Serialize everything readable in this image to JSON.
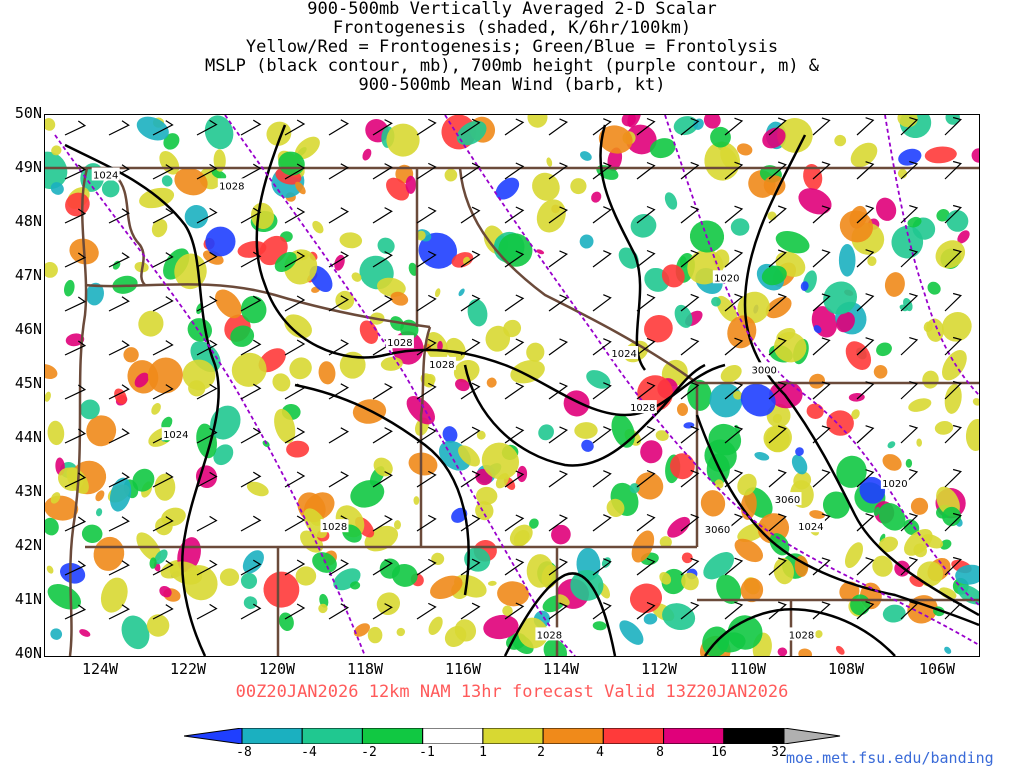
{
  "title_lines": [
    "900-500mb Vertically Averaged 2-D Scalar",
    "Frontogenesis (shaded, K/6hr/100km)",
    "Yellow/Red = Frontogenesis;  Green/Blue = Frontolysis",
    "MSLP (black contour, mb), 700mb height (purple contour, m) &",
    "900-500mb Mean Wind (barb, kt)"
  ],
  "lat_labels": [
    "50N",
    "49N",
    "48N",
    "47N",
    "46N",
    "45N",
    "44N",
    "43N",
    "42N",
    "41N",
    "40N"
  ],
  "lon_labels": [
    "124W",
    "122W",
    "120W",
    "118W",
    "116W",
    "114W",
    "112W",
    "110W",
    "108W",
    "106W"
  ],
  "valid_text": "00Z20JAN2026 12km NAM 13hr forecast Valid 13Z20JAN2026",
  "colorbar": {
    "labels": [
      "-8",
      "-4",
      "-2",
      "-1",
      "1",
      "2",
      "4",
      "8",
      "16",
      "32"
    ],
    "colors": [
      "#1f3fff",
      "#1bb0c0",
      "#20c890",
      "#11c842",
      "#ffffff",
      "#d8d832",
      "#f08a1a",
      "#ff3a3a",
      "#e0007a",
      "#000000",
      "#b0b0b0"
    ]
  },
  "contour_labels": {
    "mslp": [
      {
        "text": "1024",
        "pos": [
          -123.7,
          48.9
        ]
      },
      {
        "text": "1028",
        "pos": [
          -121.0,
          48.7
        ]
      },
      {
        "text": "1028",
        "pos": [
          -117.4,
          45.8
        ]
      },
      {
        "text": "1028",
        "pos": [
          -116.5,
          45.4
        ]
      },
      {
        "text": "1024",
        "pos": [
          -122.2,
          44.1
        ]
      },
      {
        "text": "1028",
        "pos": [
          -118.8,
          42.4
        ]
      },
      {
        "text": "1020",
        "pos": [
          -110.4,
          47.0
        ]
      },
      {
        "text": "1024",
        "pos": [
          -112.6,
          45.6
        ]
      },
      {
        "text": "1028",
        "pos": [
          -112.2,
          44.6
        ]
      },
      {
        "text": "1020",
        "pos": [
          -106.8,
          43.2
        ]
      },
      {
        "text": "1024",
        "pos": [
          -108.6,
          42.4
        ]
      },
      {
        "text": "1028",
        "pos": [
          -114.2,
          40.4
        ]
      },
      {
        "text": "1028",
        "pos": [
          -108.8,
          40.4
        ]
      }
    ],
    "height": [
      {
        "text": "3000",
        "pos": [
          -109.6,
          45.3
        ]
      },
      {
        "text": "3060",
        "pos": [
          -109.1,
          42.9
        ]
      },
      {
        "text": "3060",
        "pos": [
          -110.6,
          42.35
        ]
      }
    ]
  },
  "credit": "moe.met.fsu.edu/banding"
}
